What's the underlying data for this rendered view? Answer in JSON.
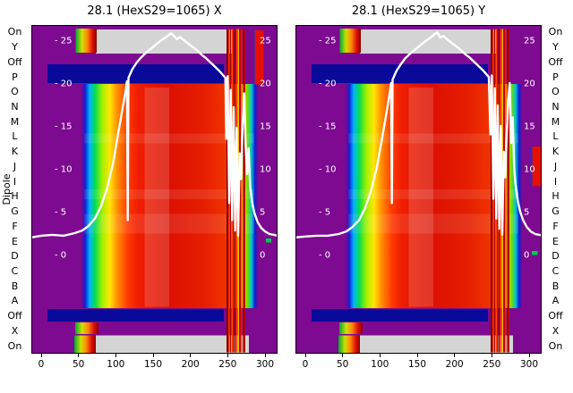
{
  "figure": {
    "titles": {
      "left": "28.1 (HexS29=1065) X",
      "right": "28.1 (HexS29=1065) Y"
    },
    "y_axis_title": "Dipole",
    "y_axis": {
      "left_labels": [
        "On",
        "Y",
        "Off",
        "P",
        "O",
        "N",
        "M",
        "L",
        "K",
        "J",
        "I",
        "H",
        "G",
        "F",
        "E",
        "D",
        "C",
        "B",
        "A",
        "Off",
        "X",
        "On"
      ],
      "right_labels": [
        "On",
        "Y",
        "Off",
        "P",
        "O",
        "N",
        "M",
        "L",
        "K",
        "J",
        "I",
        "H",
        "G",
        "F",
        "E",
        "D",
        "C",
        "B",
        "A",
        "Off",
        "X",
        "On"
      ]
    },
    "x_ticks": [
      0,
      50,
      100,
      150,
      200,
      250,
      300
    ],
    "overlay_tick_values": [
      25,
      20,
      15,
      10,
      5,
      0
    ],
    "overlay_ticks_left": [
      "- 25",
      "- 20",
      "- 15",
      "- 10",
      "- 5",
      "- 0"
    ],
    "overlay_ticks_right": [
      "25",
      "20",
      "15",
      "10",
      "5",
      "0"
    ]
  },
  "heatmap_style": {
    "colors": {
      "bg": "#7d0a90",
      "navy": "#0a0a9a",
      "gray": "#d4d4d4",
      "curve": "#ffffff",
      "frame": "#000000"
    },
    "rainbow_stops": [
      [
        0,
        "#7d0a90"
      ],
      [
        0.205,
        "#7d0a90"
      ],
      [
        0.218,
        "#0f1ed2"
      ],
      [
        0.237,
        "#00b4ff"
      ],
      [
        0.258,
        "#00dc50"
      ],
      [
        0.288,
        "#a0f000"
      ],
      [
        0.318,
        "#ffe600"
      ],
      [
        0.35,
        "#ff8c00"
      ],
      [
        0.39,
        "#ff3c00"
      ],
      [
        0.43,
        "#f01e00"
      ],
      [
        0.55,
        "#dc0f00"
      ],
      [
        0.7,
        "#e61e00"
      ],
      [
        0.79,
        "#f03200"
      ],
      [
        0.818,
        "#ff5f00"
      ],
      [
        0.84,
        "#ff9b00"
      ],
      [
        0.86,
        "#ffdc00"
      ],
      [
        0.878,
        "#6edc00"
      ],
      [
        0.894,
        "#00c8d2"
      ],
      [
        0.908,
        "#0f1ed2"
      ],
      [
        0.922,
        "#7d0a90"
      ],
      [
        1,
        "#7d0a90"
      ]
    ],
    "mini_stops": [
      [
        0,
        "#00aa33"
      ],
      [
        0.3,
        "#cfe000"
      ],
      [
        0.55,
        "#ff8800"
      ],
      [
        0.8,
        "#dd1100"
      ],
      [
        1,
        "#8b0000"
      ]
    ],
    "regions": [
      {
        "type": "gray",
        "x": [
          0.262,
          0.82
        ],
        "y": [
          0.013,
          0.087
        ]
      },
      {
        "type": "mini",
        "x": [
          0.18,
          0.265
        ],
        "y": [
          0.011,
          0.085
        ]
      },
      {
        "type": "navy",
        "x": [
          0.065,
          0.782
        ],
        "y": [
          0.12,
          0.177
        ]
      },
      {
        "type": "rainbow",
        "x": [
          0.0,
          1.0
        ],
        "y": [
          0.18,
          0.862
        ]
      },
      {
        "type": "navy",
        "x": [
          0.065,
          0.782
        ],
        "y": [
          0.864,
          0.902
        ]
      },
      {
        "type": "mini",
        "x": [
          0.178,
          0.273
        ],
        "y": [
          0.905,
          0.94
        ]
      },
      {
        "type": "gray",
        "x": [
          0.218,
          0.884
        ],
        "y": [
          0.944,
          0.997
        ]
      },
      {
        "type": "mini",
        "x": [
          0.175,
          0.262
        ],
        "y": [
          0.944,
          0.997
        ]
      }
    ],
    "pale_column": {
      "x": [
        0.46,
        0.56
      ],
      "y": [
        0.19,
        0.858
      ],
      "opacity": 0.16
    },
    "streaks": [
      [
        0.33,
        0.36
      ],
      [
        0.5,
        0.53
      ],
      [
        0.575,
        0.635
      ]
    ],
    "stripes": [
      [
        248.5,
        2,
        "#7a0000"
      ],
      [
        251,
        1.4,
        "#ff2d00"
      ],
      [
        253,
        1.2,
        "#aa0000"
      ],
      [
        255,
        1.6,
        "#ff4b00"
      ],
      [
        257,
        1.2,
        "#d20000"
      ],
      [
        259,
        1.4,
        "#6e0000"
      ],
      [
        261,
        1.6,
        "#ff2d00"
      ],
      [
        263.5,
        1.2,
        "#ffb400"
      ],
      [
        265.5,
        1.8,
        "#c80000"
      ],
      [
        268,
        1.4,
        "#ff2d00"
      ],
      [
        270.5,
        1.4,
        "#7a0000"
      ],
      [
        272.5,
        1,
        "#d20000"
      ]
    ]
  },
  "chart_data": [
    {
      "type": "heatmap",
      "title": "28.1 (HexS29=1065) X",
      "colormap": "jet",
      "x_range": [
        -13,
        317
      ],
      "x_ticks": [
        0,
        50,
        100,
        150,
        200,
        250,
        300
      ],
      "stripe_region_x": [
        249,
        272
      ],
      "row_labels": [
        "On",
        "Y",
        "Off",
        "P",
        "O",
        "N",
        "M",
        "L",
        "K",
        "J",
        "I",
        "H",
        "G",
        "F",
        "E",
        "D",
        "C",
        "B",
        "A",
        "Off",
        "X",
        "On"
      ],
      "row_states": [
        "gray",
        "gray",
        "off-band",
        "data",
        "data",
        "data",
        "data",
        "data",
        "data",
        "data",
        "data",
        "data",
        "data",
        "data",
        "data",
        "data",
        "data",
        "data",
        "data",
        "off-band",
        "strip",
        "gray"
      ],
      "overlay_line": {
        "name": "beam-profile-x",
        "value_range": [
          0,
          25
        ],
        "points": [
          [
            -13,
            2.0
          ],
          [
            0,
            2.2
          ],
          [
            15,
            2.3
          ],
          [
            30,
            2.2
          ],
          [
            45,
            2.5
          ],
          [
            55,
            2.8
          ],
          [
            63,
            3.3
          ],
          [
            72,
            4.2
          ],
          [
            80,
            5.6
          ],
          [
            88,
            7.6
          ],
          [
            96,
            10.5
          ],
          [
            103,
            14.0
          ],
          [
            109,
            17.0
          ],
          [
            113,
            19.0
          ],
          [
            115,
            20.2
          ],
          [
            116,
            4.0
          ],
          [
            117,
            20.6
          ],
          [
            122,
            21.6
          ],
          [
            128,
            22.4
          ],
          [
            134,
            23.0
          ],
          [
            140,
            23.5
          ],
          [
            147,
            24.0
          ],
          [
            154,
            24.5
          ],
          [
            161,
            25.0
          ],
          [
            168,
            25.4
          ],
          [
            174,
            25.8
          ],
          [
            178,
            25.5
          ],
          [
            182,
            25.1
          ],
          [
            186,
            25.4
          ],
          [
            191,
            25.0
          ],
          [
            197,
            24.6
          ],
          [
            203,
            24.2
          ],
          [
            209,
            23.8
          ],
          [
            215,
            23.3
          ],
          [
            221,
            22.9
          ],
          [
            227,
            22.4
          ],
          [
            233,
            21.9
          ],
          [
            239,
            21.4
          ],
          [
            244,
            20.9
          ],
          [
            247,
            20.6
          ],
          [
            248,
            13.5
          ],
          [
            250,
            20.8
          ],
          [
            252,
            6.0
          ],
          [
            254,
            19.2
          ],
          [
            256,
            4.0
          ],
          [
            258,
            17.2
          ],
          [
            260,
            2.8
          ],
          [
            262,
            14.8
          ],
          [
            264,
            2.2
          ],
          [
            266,
            11.8
          ],
          [
            268,
            8.8
          ],
          [
            270,
            15.2
          ],
          [
            272,
            18.8
          ],
          [
            274,
            12.8
          ],
          [
            276,
            9.4
          ],
          [
            278,
            12.4
          ],
          [
            280,
            8.0
          ],
          [
            283,
            6.0
          ],
          [
            286,
            4.8
          ],
          [
            290,
            3.8
          ],
          [
            295,
            3.1
          ],
          [
            300,
            2.7
          ],
          [
            306,
            2.4
          ],
          [
            312,
            2.3
          ],
          [
            317,
            2.2
          ]
        ]
      },
      "patches": [
        {
          "x": [
            0.902,
            0.908
          ],
          "y": [
            0.016,
            0.18
          ],
          "color": "#1e32c8"
        },
        {
          "x": [
            0.908,
            0.944
          ],
          "y": [
            0.016,
            0.18
          ],
          "color": "#e60f00"
        },
        {
          "x": [
            0.952,
            0.975
          ],
          "y": [
            0.65,
            0.662
          ],
          "color": "#00c850"
        }
      ]
    },
    {
      "type": "heatmap",
      "title": "28.1 (HexS29=1065) Y",
      "colormap": "jet",
      "x_range": [
        -13,
        317
      ],
      "x_ticks": [
        0,
        50,
        100,
        150,
        200,
        250,
        300
      ],
      "stripe_region_x": [
        249,
        272
      ],
      "row_labels": [
        "On",
        "Y",
        "Off",
        "P",
        "O",
        "N",
        "M",
        "L",
        "K",
        "J",
        "I",
        "H",
        "G",
        "F",
        "E",
        "D",
        "C",
        "B",
        "A",
        "Off",
        "X",
        "On"
      ],
      "row_states": [
        "gray",
        "gray",
        "off-band",
        "data",
        "data",
        "data",
        "data",
        "data",
        "data",
        "data",
        "data",
        "data",
        "data",
        "data",
        "data",
        "data",
        "data",
        "data",
        "data",
        "off-band",
        "strip",
        "gray"
      ],
      "overlay_line": {
        "name": "beam-profile-y",
        "value_range": [
          0,
          25
        ],
        "points": [
          [
            -13,
            2.0
          ],
          [
            0,
            2.1
          ],
          [
            15,
            2.2
          ],
          [
            30,
            2.2
          ],
          [
            45,
            2.4
          ],
          [
            55,
            2.7
          ],
          [
            63,
            3.2
          ],
          [
            72,
            4.0
          ],
          [
            80,
            5.4
          ],
          [
            88,
            7.4
          ],
          [
            96,
            10.2
          ],
          [
            103,
            13.6
          ],
          [
            109,
            16.6
          ],
          [
            113,
            18.8
          ],
          [
            115,
            20.0
          ],
          [
            116,
            6.0
          ],
          [
            117,
            20.4
          ],
          [
            122,
            21.4
          ],
          [
            128,
            22.2
          ],
          [
            134,
            22.9
          ],
          [
            140,
            23.4
          ],
          [
            147,
            23.9
          ],
          [
            154,
            24.4
          ],
          [
            161,
            24.9
          ],
          [
            168,
            25.3
          ],
          [
            173,
            25.7
          ],
          [
            177,
            25.9
          ],
          [
            181,
            25.3
          ],
          [
            185,
            25.5
          ],
          [
            190,
            25.1
          ],
          [
            196,
            24.7
          ],
          [
            202,
            24.3
          ],
          [
            208,
            23.9
          ],
          [
            214,
            23.4
          ],
          [
            220,
            23.0
          ],
          [
            226,
            22.5
          ],
          [
            232,
            22.0
          ],
          [
            238,
            21.5
          ],
          [
            243,
            21.0
          ],
          [
            246,
            20.7
          ],
          [
            248,
            14.0
          ],
          [
            250,
            20.9
          ],
          [
            252,
            6.5
          ],
          [
            254,
            19.4
          ],
          [
            256,
            4.2
          ],
          [
            258,
            17.4
          ],
          [
            260,
            3.0
          ],
          [
            262,
            15.0
          ],
          [
            264,
            2.3
          ],
          [
            266,
            12.0
          ],
          [
            268,
            9.0
          ],
          [
            270,
            14.0
          ],
          [
            272,
            18.0
          ],
          [
            274,
            20.0
          ],
          [
            276,
            13.0
          ],
          [
            278,
            16.0
          ],
          [
            280,
            10.0
          ],
          [
            282,
            8.0
          ],
          [
            285,
            6.2
          ],
          [
            288,
            5.0
          ],
          [
            292,
            4.0
          ],
          [
            297,
            3.2
          ],
          [
            302,
            2.7
          ],
          [
            308,
            2.4
          ],
          [
            314,
            2.3
          ],
          [
            317,
            2.2
          ]
        ]
      },
      "patches": [
        {
          "x": [
            0.955,
            0.962
          ],
          "y": [
            0.37,
            0.49
          ],
          "color": "#1e32c8"
        },
        {
          "x": [
            0.962,
            0.998
          ],
          "y": [
            0.37,
            0.49
          ],
          "color": "#e60f00"
        },
        {
          "x": [
            0.96,
            0.983
          ],
          "y": [
            0.688,
            0.7
          ],
          "color": "#00c850"
        }
      ]
    }
  ]
}
